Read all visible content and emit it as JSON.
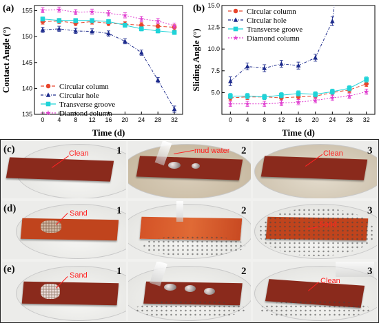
{
  "chart_data": [
    {
      "panel": "(a)",
      "type": "line",
      "xlabel": "Time (d)",
      "ylabel": "Contact Angle (°)",
      "x": [
        0,
        4,
        8,
        12,
        16,
        20,
        24,
        28,
        32
      ],
      "xlim": [
        -2,
        34
      ],
      "ylim": [
        135,
        156
      ],
      "yticks": [
        135,
        140,
        145,
        150,
        155
      ],
      "legend_position": "bottom-left",
      "series": [
        {
          "name": "Circular column",
          "color": "#e8452c",
          "marker": "circle",
          "dash": "5,3",
          "values": [
            152.9,
            153.0,
            152.6,
            152.9,
            152.6,
            152.4,
            152.2,
            152.0,
            151.8
          ],
          "errors": [
            0.5,
            0.5,
            0.5,
            0.5,
            0.5,
            0.5,
            0.5,
            0.5,
            0.5
          ]
        },
        {
          "name": "Circular hole",
          "color": "#1c2a8c",
          "marker": "triangle",
          "dash": "4,2,1,2",
          "values": [
            151.3,
            151.5,
            151.1,
            151.0,
            150.6,
            149.1,
            146.9,
            141.6,
            136.0
          ],
          "errors": [
            0.5,
            0.5,
            0.5,
            0.5,
            0.5,
            0.5,
            0.5,
            0.5,
            0.6
          ]
        },
        {
          "name": "Transverse groove",
          "color": "#1fd3d8",
          "marker": "square",
          "dash": "",
          "values": [
            153.4,
            153.1,
            153.1,
            153.1,
            152.9,
            152.2,
            151.5,
            151.1,
            150.8
          ],
          "errors": [
            0.4,
            0.4,
            0.4,
            0.4,
            0.4,
            0.4,
            0.4,
            0.4,
            0.4
          ]
        },
        {
          "name": "Diamond column",
          "color": "#e040d0",
          "marker": "star",
          "dash": "2,2",
          "values": [
            155.1,
            155.2,
            154.7,
            154.8,
            154.5,
            154.1,
            153.4,
            153.0,
            152.1
          ],
          "errors": [
            0.5,
            0.5,
            0.5,
            0.5,
            0.5,
            0.5,
            0.5,
            0.5,
            0.5
          ]
        }
      ]
    },
    {
      "panel": "(b)",
      "type": "line",
      "xlabel": "Time (d)",
      "ylabel": "Sliding Angle (°)",
      "x": [
        0,
        4,
        8,
        12,
        16,
        20,
        24,
        28,
        32
      ],
      "xlim": [
        -2,
        34
      ],
      "ylim": [
        2.5,
        15
      ],
      "yticks": [
        5.0,
        7.5,
        10.0,
        12.5,
        15.0
      ],
      "ytick_labels": [
        "5.0",
        "7.5",
        "10.0",
        "12.5",
        "15.0"
      ],
      "legend_position": "top-left",
      "series": [
        {
          "name": "Circular column",
          "color": "#e8452c",
          "marker": "circle",
          "dash": "5,3",
          "values": [
            4.4,
            4.5,
            4.5,
            4.4,
            4.5,
            4.6,
            5.0,
            5.3,
            6.0
          ],
          "errors": [
            0.3,
            0.3,
            0.3,
            0.3,
            0.3,
            0.3,
            0.3,
            0.3,
            0.3
          ]
        },
        {
          "name": "Circular hole",
          "color": "#1c2a8c",
          "marker": "triangle",
          "dash": "4,2,1,2",
          "values": [
            6.3,
            8.0,
            7.8,
            8.3,
            8.1,
            9.0,
            13.2,
            null,
            null
          ],
          "errors": [
            0.5,
            0.4,
            0.4,
            0.4,
            0.4,
            0.4,
            0.5,
            0,
            0
          ],
          "extends_above_top": true
        },
        {
          "name": "Transverse groove",
          "color": "#1fd3d8",
          "marker": "square",
          "dash": "",
          "values": [
            4.6,
            4.6,
            4.5,
            4.7,
            4.9,
            4.8,
            5.1,
            5.5,
            6.5
          ],
          "errors": [
            0.3,
            0.3,
            0.3,
            0.3,
            0.3,
            0.3,
            0.3,
            0.3,
            0.3
          ]
        },
        {
          "name": "Diamond column",
          "color": "#e040d0",
          "marker": "star",
          "dash": "2,2",
          "values": [
            3.7,
            3.7,
            3.7,
            3.8,
            3.9,
            4.1,
            4.4,
            4.6,
            5.1
          ],
          "errors": [
            0.3,
            0.3,
            0.3,
            0.3,
            0.3,
            0.3,
            0.3,
            0.3,
            0.3
          ]
        }
      ]
    }
  ],
  "photos": {
    "rows": [
      {
        "label": "(c)",
        "panels": [
          {
            "index": "1",
            "callout": "Clean"
          },
          {
            "index": "2",
            "callout": "mud water"
          },
          {
            "index": "3",
            "callout": "Clean"
          }
        ]
      },
      {
        "label": "(d)",
        "panels": [
          {
            "index": "1",
            "callout": "Sand"
          },
          {
            "index": "2",
            "callout": ""
          },
          {
            "index": "3",
            "callout": "Sand"
          }
        ]
      },
      {
        "label": "(e)",
        "panels": [
          {
            "index": "1",
            "callout": "Sand"
          },
          {
            "index": "2",
            "callout": ""
          },
          {
            "index": "3",
            "callout": "Clean"
          }
        ]
      }
    ]
  }
}
